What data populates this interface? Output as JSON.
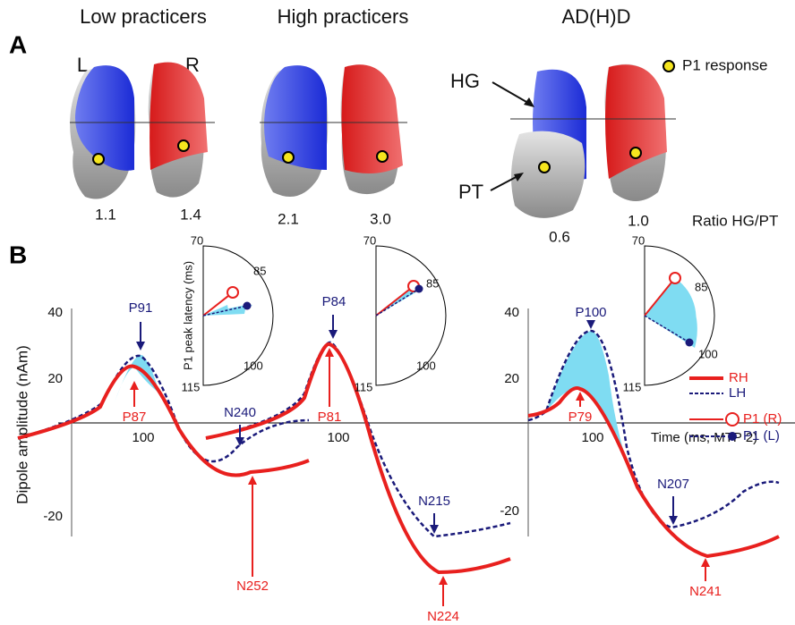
{
  "panel_a": {
    "label": "A",
    "groups": [
      {
        "title": "Low practicers",
        "left": "L",
        "right": "R",
        "ratio_left": "1.1",
        "ratio_right": "1.4"
      },
      {
        "title": "High practicers",
        "ratio_left": "2.1",
        "ratio_right": "3.0"
      },
      {
        "title": "AD(H)D",
        "ratio_left": "0.6",
        "ratio_right": "1.0",
        "hg": "HG",
        "pt": "PT"
      }
    ],
    "legend": "P1 response",
    "ratio_label": "Ratio HG/PT"
  },
  "panel_b": {
    "label": "B",
    "y_axis_label": "Dipole amplitude (nAm)",
    "x_axis_label": "Time (ms, MTP 2)",
    "polar_axis_label": "P1 peak latency (ms)",
    "polar_ticks": [
      "70",
      "85",
      "100",
      "115"
    ],
    "y_ticks": [
      "40",
      "20",
      "-20"
    ],
    "x_tick": "100",
    "plots": [
      {
        "lh_peak": "P91",
        "rh_peak": "P87",
        "lh_trough": "N240",
        "rh_trough": "N252"
      },
      {
        "lh_peak": "P84",
        "rh_peak": "P81",
        "lh_trough": "N215",
        "rh_trough": "N224"
      },
      {
        "lh_peak": "P100",
        "rh_peak": "P79",
        "lh_trough": "N207",
        "rh_trough": "N241"
      }
    ],
    "legend": [
      "RH",
      "LH",
      "P1 (R)",
      "P1 (L)"
    ]
  }
}
